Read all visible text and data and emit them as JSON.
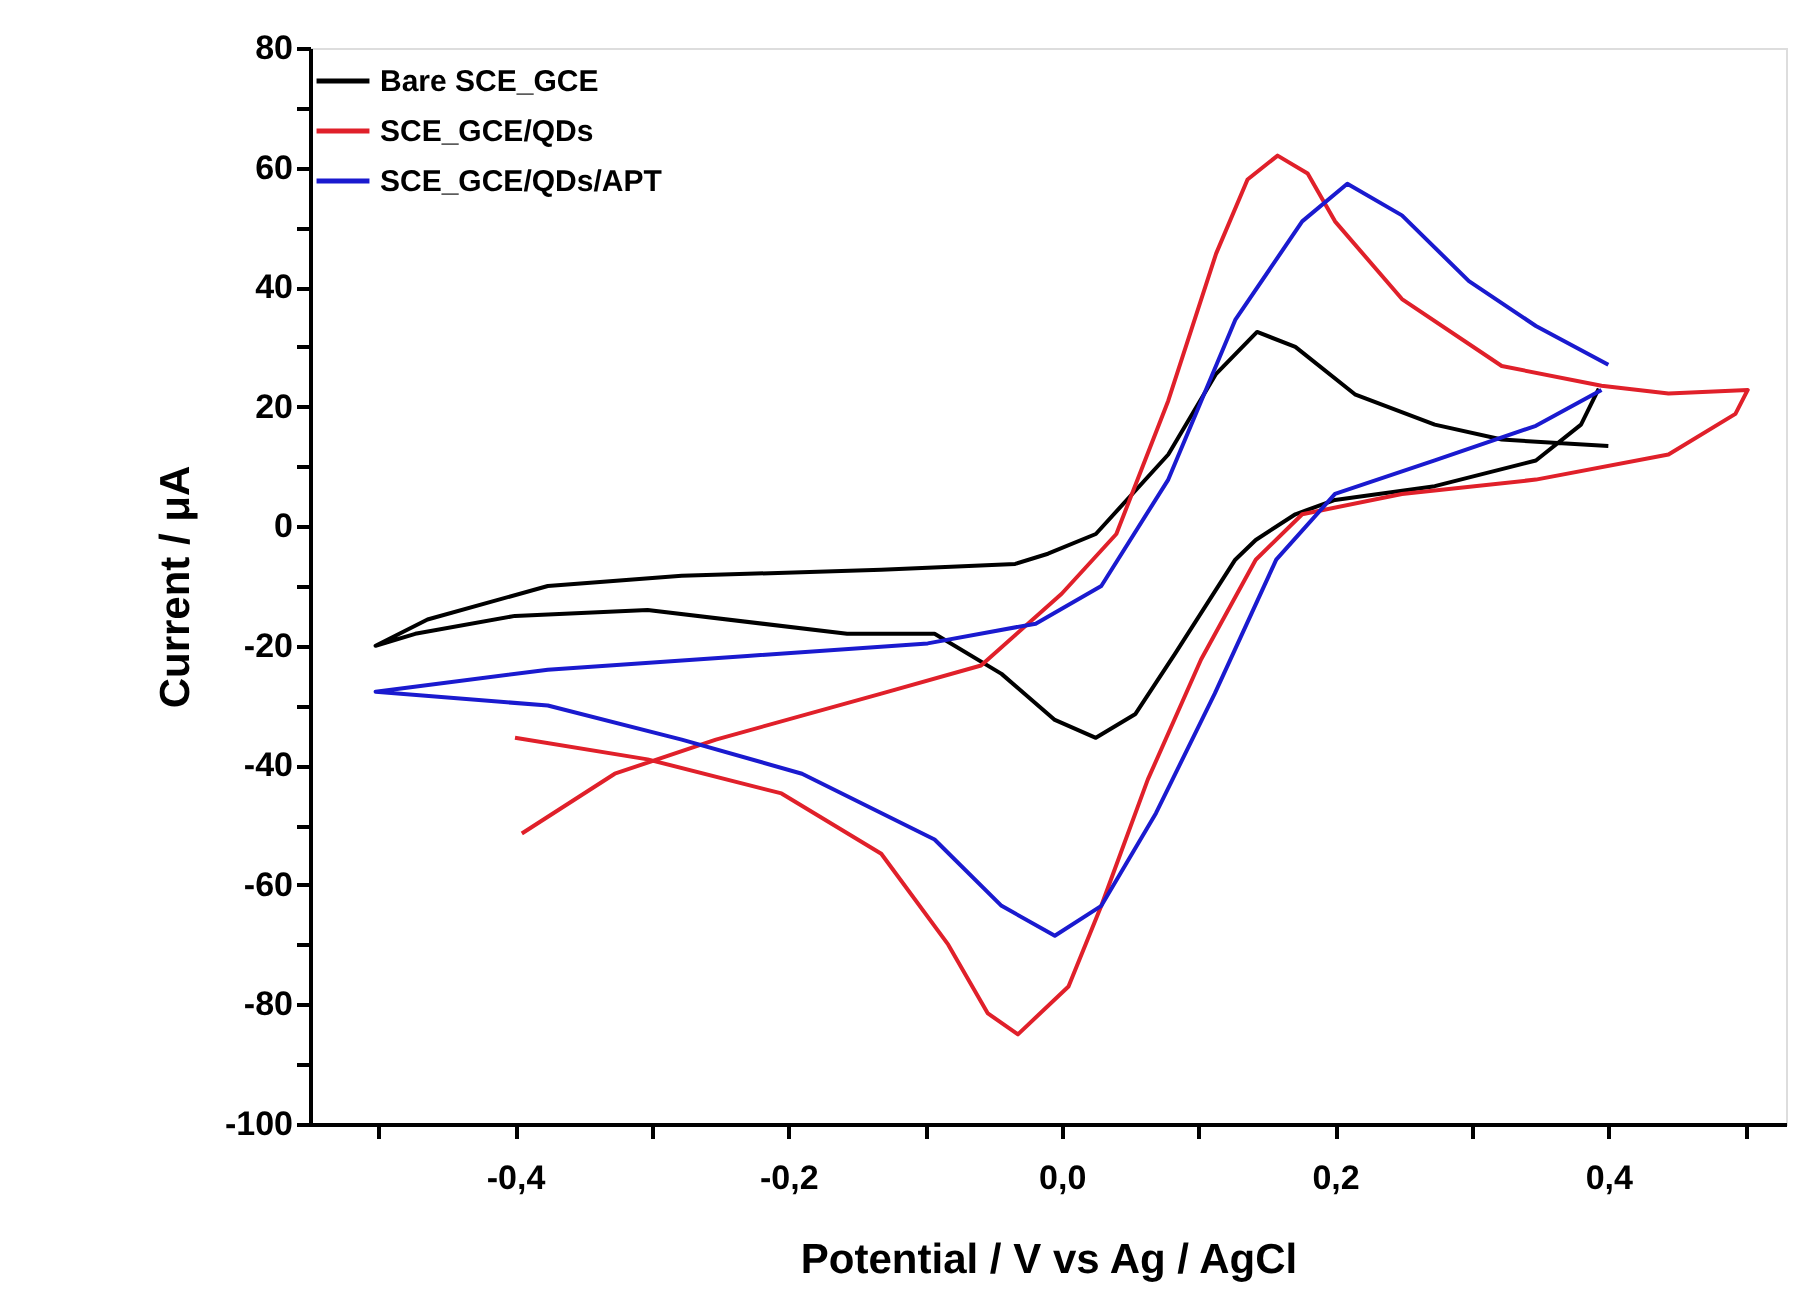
{
  "chart_data": {
    "type": "line",
    "xlabel": "Potential / V vs Ag / AgCl",
    "ylabel": "Current / μA",
    "xlim": [
      -0.55,
      0.53
    ],
    "ylim": [
      -100,
      80
    ],
    "xticks": [
      {
        "value": -0.5,
        "label": null
      },
      {
        "value": -0.4,
        "label": "-0,4"
      },
      {
        "value": -0.3,
        "label": null
      },
      {
        "value": -0.2,
        "label": "-0,2"
      },
      {
        "value": -0.1,
        "label": null
      },
      {
        "value": 0.0,
        "label": "0,0"
      },
      {
        "value": 0.1,
        "label": null
      },
      {
        "value": 0.2,
        "label": "0,2"
      },
      {
        "value": 0.3,
        "label": null
      },
      {
        "value": 0.4,
        "label": "0,4"
      },
      {
        "value": 0.5,
        "label": null
      }
    ],
    "yticks": [
      -100,
      {
        "value": -90,
        "label": null
      },
      -80,
      {
        "value": -70,
        "label": null
      },
      -60,
      {
        "value": -50,
        "label": null
      },
      -40,
      {
        "value": -30,
        "label": null
      },
      -20,
      {
        "value": -10,
        "label": null
      },
      0,
      {
        "value": 10,
        "label": null
      },
      20,
      {
        "value": 30,
        "label": null
      },
      40,
      {
        "value": 50,
        "label": null
      },
      60,
      {
        "value": 70,
        "label": null
      },
      80
    ],
    "grid": false,
    "legend": "top left",
    "marker": "none",
    "line_style": "solid",
    "series": [
      {
        "name": "Bare SCE_GCE",
        "color": "#000000",
        "x": [
          0.4,
          0.322,
          0.273,
          0.215,
          0.171,
          0.143,
          0.113,
          0.078,
          0.025,
          -0.01,
          -0.034,
          -0.132,
          -0.278,
          -0.376,
          -0.464,
          -0.502,
          -0.473,
          -0.4,
          -0.303,
          -0.157,
          -0.093,
          -0.044,
          -0.005,
          0.025,
          0.054,
          0.083,
          0.127,
          0.142,
          0.171,
          0.2,
          0.273,
          0.347,
          0.38,
          0.393
        ],
        "values": [
          13.4,
          14.5,
          17,
          22,
          30,
          32.5,
          25.5,
          12,
          -1.3,
          -4.6,
          -6.3,
          -7.3,
          -8.3,
          -10,
          -15.6,
          -20,
          -18,
          -15,
          -14,
          -18,
          -18,
          -24.7,
          -32.4,
          -35.4,
          -31.4,
          -21.3,
          -5.6,
          -2.3,
          2,
          4.4,
          6.7,
          11,
          17,
          23
        ]
      },
      {
        "name": "SCE_GCE/QDs",
        "color": "#e0202a",
        "x": [
          -0.4,
          -0.303,
          -0.205,
          -0.132,
          -0.083,
          -0.054,
          -0.032,
          0.005,
          0.029,
          0.063,
          0.102,
          0.142,
          0.176,
          0.249,
          0.347,
          0.444,
          0.493,
          0.502,
          0.444,
          0.395,
          0.322,
          0.249,
          0.2,
          0.18,
          0.158,
          0.136,
          0.113,
          0.078,
          0.04,
          0.0,
          -0.059,
          -0.132,
          -0.253,
          -0.327,
          -0.395
        ],
        "values": [
          -35.4,
          -39,
          -44.7,
          -54.8,
          -70,
          -81.5,
          -85,
          -77,
          -63.5,
          -42.4,
          -22.3,
          -5.6,
          2,
          5.4,
          7.8,
          12,
          18.8,
          22.8,
          22.2,
          23.5,
          26.8,
          38,
          51,
          59,
          62,
          58,
          45.6,
          21,
          -1.3,
          -11.3,
          -23.3,
          -28,
          -35.7,
          -41.4,
          -51.4
        ]
      },
      {
        "name": "SCE_GCE/QDs/APT",
        "color": "#1a1acf",
        "x": [
          0.4,
          0.347,
          0.298,
          0.249,
          0.209,
          0.176,
          0.127,
          0.078,
          0.029,
          -0.019,
          -0.098,
          -0.23,
          -0.376,
          -0.502,
          -0.376,
          -0.278,
          -0.19,
          -0.093,
          -0.044,
          -0.005,
          0.029,
          0.069,
          0.112,
          0.157,
          0.2,
          0.273,
          0.347,
          0.395
        ],
        "values": [
          27,
          33.5,
          41,
          52,
          57.3,
          51,
          34.5,
          7.8,
          -10,
          -16.3,
          -19.6,
          -21.7,
          -24,
          -27.7,
          -30,
          -35.7,
          -41.4,
          -52.4,
          -63.5,
          -68.5,
          -63.5,
          -48,
          -28,
          -5.6,
          5.4,
          11,
          16.8,
          22.8
        ]
      }
    ]
  }
}
